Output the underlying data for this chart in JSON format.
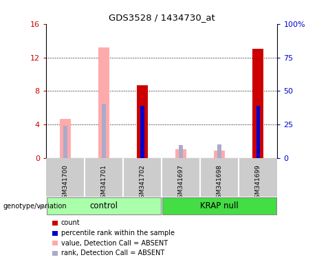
{
  "title": "GDS3528 / 1434730_at",
  "samples": [
    "GSM341700",
    "GSM341701",
    "GSM341702",
    "GSM341697",
    "GSM341698",
    "GSM341699"
  ],
  "count_values": [
    null,
    null,
    8.7,
    null,
    null,
    13.0
  ],
  "rank_values": [
    null,
    null,
    39.0,
    null,
    null,
    39.0
  ],
  "absent_value_values": [
    4.7,
    13.2,
    null,
    1.1,
    0.9,
    null
  ],
  "absent_rank_values": [
    24.0,
    40.5,
    null,
    10.0,
    10.5,
    null
  ],
  "ylim_left": [
    0,
    16
  ],
  "ylim_right": [
    0,
    100
  ],
  "yticks_left": [
    0,
    4,
    8,
    12,
    16
  ],
  "ytick_labels_left": [
    "0",
    "4",
    "8",
    "12",
    "16"
  ],
  "yticks_right": [
    0,
    25,
    50,
    75,
    100
  ],
  "ytick_labels_right": [
    "0",
    "25",
    "50",
    "75",
    "100%"
  ],
  "color_count": "#cc0000",
  "color_rank": "#0000cc",
  "color_absent_value": "#ffaaaa",
  "color_absent_rank": "#aaaacc",
  "bg_sample": "#cccccc",
  "bg_group_control": "#aaffaa",
  "bg_group_krap": "#44dd44",
  "left_axis_color": "#cc0000",
  "right_axis_color": "#0000cc",
  "legend_items": [
    {
      "label": "count",
      "color": "#cc0000"
    },
    {
      "label": "percentile rank within the sample",
      "color": "#0000cc"
    },
    {
      "label": "value, Detection Call = ABSENT",
      "color": "#ffaaaa"
    },
    {
      "label": "rank, Detection Call = ABSENT",
      "color": "#aaaacc"
    }
  ]
}
